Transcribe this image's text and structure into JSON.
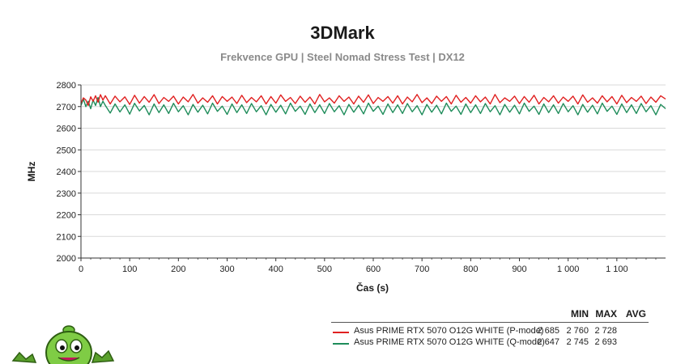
{
  "header": {
    "title": "3DMark",
    "subtitle": "Frekvence GPU | Steel Nomad Stress Test | DX12"
  },
  "chart_data": {
    "type": "line",
    "title": "3DMark",
    "subtitle": "Frekvence GPU | Steel Nomad Stress Test | DX12",
    "xlabel": "Čas (s)",
    "ylabel": "MHz",
    "xlim": [
      0,
      1200
    ],
    "ylim": [
      2000,
      2800
    ],
    "xticks": [
      0,
      100,
      200,
      300,
      400,
      500,
      600,
      700,
      800,
      900,
      1000,
      1100
    ],
    "xtick_labels": [
      "0",
      "100",
      "200",
      "300",
      "400",
      "500",
      "600",
      "700",
      "800",
      "900",
      "1 000",
      "1 100"
    ],
    "yticks": [
      2000,
      2100,
      2200,
      2300,
      2400,
      2500,
      2600,
      2700,
      2800
    ],
    "grid": true,
    "legend_position": "bottom-right",
    "series": [
      {
        "name": "Asus PRIME RTX 5070 O12G WHITE (P-mode)",
        "color": "#e02020",
        "min": "2 685",
        "max": "2 760",
        "avg": "2 728",
        "x": [
          0,
          5,
          10,
          15,
          20,
          25,
          30,
          35,
          40,
          45,
          50,
          60,
          70,
          80,
          90,
          100,
          110,
          120,
          130,
          140,
          150,
          160,
          170,
          180,
          190,
          200,
          210,
          220,
          230,
          240,
          250,
          260,
          270,
          280,
          290,
          300,
          310,
          320,
          330,
          340,
          350,
          360,
          370,
          380,
          390,
          400,
          410,
          420,
          430,
          440,
          450,
          460,
          470,
          480,
          490,
          500,
          510,
          520,
          530,
          540,
          550,
          560,
          570,
          580,
          590,
          600,
          610,
          620,
          630,
          640,
          650,
          660,
          670,
          680,
          690,
          700,
          710,
          720,
          730,
          740,
          750,
          760,
          770,
          780,
          790,
          800,
          810,
          820,
          830,
          840,
          850,
          860,
          870,
          880,
          890,
          900,
          910,
          920,
          930,
          940,
          950,
          960,
          970,
          980,
          990,
          1000,
          1010,
          1020,
          1030,
          1040,
          1050,
          1060,
          1070,
          1080,
          1090,
          1100,
          1110,
          1120,
          1130,
          1140,
          1150,
          1160,
          1170,
          1180,
          1190,
          1200
        ],
        "y": [
          2715,
          2740,
          2730,
          2705,
          2745,
          2725,
          2750,
          2720,
          2755,
          2730,
          2750,
          2712,
          2748,
          2722,
          2745,
          2710,
          2752,
          2716,
          2746,
          2720,
          2755,
          2714,
          2742,
          2724,
          2748,
          2712,
          2744,
          2722,
          2756,
          2716,
          2740,
          2720,
          2750,
          2712,
          2746,
          2724,
          2744,
          2714,
          2752,
          2718,
          2742,
          2722,
          2750,
          2712,
          2746,
          2716,
          2754,
          2724,
          2742,
          2714,
          2748,
          2720,
          2744,
          2712,
          2756,
          2722,
          2740,
          2716,
          2750,
          2724,
          2744,
          2712,
          2748,
          2720,
          2754,
          2714,
          2742,
          2724,
          2746,
          2716,
          2750,
          2712,
          2744,
          2722,
          2756,
          2718,
          2740,
          2714,
          2748,
          2724,
          2746,
          2712,
          2752,
          2720,
          2742,
          2716,
          2750,
          2722,
          2744,
          2712,
          2756,
          2718,
          2740,
          2724,
          2748,
          2714,
          2746,
          2720,
          2752,
          2712,
          2742,
          2722,
          2750,
          2716,
          2744,
          2724,
          2748,
          2712,
          2754,
          2720,
          2740,
          2716,
          2750,
          2722,
          2746,
          2712,
          2752,
          2718,
          2742,
          2724,
          2748,
          2714,
          2744,
          2720,
          2750,
          2735
        ]
      },
      {
        "name": "Asus PRIME RTX 5070 O12G WHITE (Q-mode)",
        "color": "#1e8c5a",
        "min": "2 647",
        "max": "2 745",
        "avg": "2 693",
        "x": [
          0,
          5,
          10,
          15,
          20,
          25,
          30,
          35,
          40,
          45,
          50,
          60,
          70,
          80,
          90,
          100,
          110,
          120,
          130,
          140,
          150,
          160,
          170,
          180,
          190,
          200,
          210,
          220,
          230,
          240,
          250,
          260,
          270,
          280,
          290,
          300,
          310,
          320,
          330,
          340,
          350,
          360,
          370,
          380,
          390,
          400,
          410,
          420,
          430,
          440,
          450,
          460,
          470,
          480,
          490,
          500,
          510,
          520,
          530,
          540,
          550,
          560,
          570,
          580,
          590,
          600,
          610,
          620,
          630,
          640,
          650,
          660,
          670,
          680,
          690,
          700,
          710,
          720,
          730,
          740,
          750,
          760,
          770,
          780,
          790,
          800,
          810,
          820,
          830,
          840,
          850,
          860,
          870,
          880,
          890,
          900,
          910,
          920,
          930,
          940,
          950,
          960,
          970,
          980,
          990,
          1000,
          1010,
          1020,
          1030,
          1040,
          1050,
          1060,
          1070,
          1080,
          1090,
          1100,
          1110,
          1120,
          1130,
          1140,
          1150,
          1160,
          1170,
          1180,
          1190,
          1200
        ],
        "y": [
          2705,
          2735,
          2700,
          2725,
          2690,
          2730,
          2705,
          2742,
          2700,
          2725,
          2705,
          2670,
          2712,
          2675,
          2708,
          2665,
          2715,
          2680,
          2705,
          2662,
          2712,
          2672,
          2708,
          2668,
          2715,
          2676,
          2704,
          2662,
          2710,
          2674,
          2706,
          2666,
          2716,
          2678,
          2702,
          2664,
          2712,
          2672,
          2708,
          2668,
          2714,
          2676,
          2704,
          2662,
          2710,
          2674,
          2706,
          2666,
          2716,
          2678,
          2702,
          2664,
          2712,
          2672,
          2708,
          2668,
          2714,
          2676,
          2704,
          2662,
          2710,
          2674,
          2706,
          2666,
          2716,
          2678,
          2702,
          2664,
          2712,
          2672,
          2708,
          2668,
          2714,
          2676,
          2704,
          2662,
          2710,
          2674,
          2706,
          2666,
          2716,
          2678,
          2702,
          2664,
          2712,
          2672,
          2708,
          2668,
          2714,
          2676,
          2704,
          2662,
          2710,
          2674,
          2706,
          2666,
          2716,
          2678,
          2702,
          2664,
          2712,
          2672,
          2708,
          2668,
          2714,
          2676,
          2704,
          2662,
          2710,
          2674,
          2706,
          2666,
          2716,
          2678,
          2702,
          2664,
          2712,
          2672,
          2708,
          2668,
          2714,
          2676,
          2704,
          2662,
          2710,
          2690
        ]
      }
    ]
  },
  "legend": {
    "col_min": "MIN",
    "col_max": "MAX",
    "col_avg": "AVG"
  },
  "mascot": {
    "icon": "green-alien-mascot-icon"
  }
}
